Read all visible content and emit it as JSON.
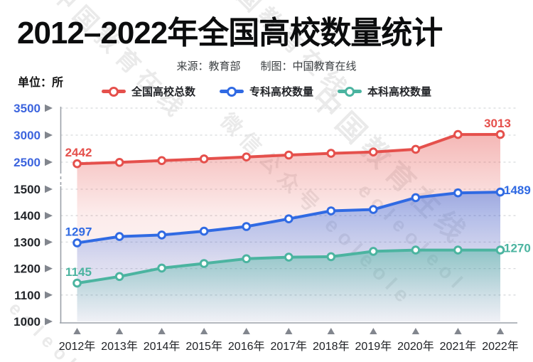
{
  "header": {
    "title": "2012–2022年全国高校数量统计",
    "source_label": "来源：教育部",
    "credit_label": "制图：中国教育在线",
    "unit_label": "单位：所"
  },
  "watermark": {
    "lines": [
      "中国教育在线",
      "中国教育在线",
      "中国教育在线",
      "微信公众号 eoleole",
      "eoleoleol",
      "eoleol"
    ]
  },
  "palette": {
    "total_red": "#e5504c",
    "zhuanke_blue": "#306ae3",
    "benke_teal": "#4bb4a0",
    "upper_tick_blue": "#3c64de",
    "lower_tick_dark": "#23262b",
    "axis_gray": "#9ba1a8",
    "grid_gray": "#d7d9dc",
    "triangle_gray": "#82868e"
  },
  "chart_data": {
    "type": "line",
    "title": "2012–2022年全国高校数量统计",
    "unit": "所",
    "source": "来源：教育部",
    "credit": "制图：中国教育在线",
    "legend_position": "top",
    "grid": true,
    "categories": [
      "2012年",
      "2013年",
      "2014年",
      "2015年",
      "2016年",
      "2017年",
      "2018年",
      "2019年",
      "2020年",
      "2021年",
      "2022年"
    ],
    "series": [
      {
        "name": "全国高校总数",
        "color": "#e5504c",
        "values": [
          2442,
          2491,
          2529,
          2560,
          2596,
          2631,
          2663,
          2688,
          2738,
          3012,
          3013
        ],
        "first_label": "2442",
        "last_label": "3013"
      },
      {
        "name": "专科高校数量",
        "color": "#306ae3",
        "values": [
          1297,
          1321,
          1327,
          1341,
          1359,
          1388,
          1418,
          1423,
          1468,
          1486,
          1489
        ],
        "first_label": "1297",
        "last_label": "1489"
      },
      {
        "name": "本科高校数量",
        "color": "#4bb4a0",
        "values": [
          1145,
          1170,
          1202,
          1219,
          1237,
          1243,
          1245,
          1265,
          1270,
          1270,
          1270
        ],
        "first_label": "1145",
        "last_label": "1270"
      }
    ],
    "y_axis": {
      "axis_break": true,
      "ticks": [
        {
          "label": "3500",
          "value": 3500,
          "group": "upper"
        },
        {
          "label": "3000",
          "value": 3000,
          "group": "upper"
        },
        {
          "label": "2500",
          "value": 2500,
          "group": "upper"
        },
        {
          "label": "1500",
          "value": 1500,
          "group": "lower"
        },
        {
          "label": "1400",
          "value": 1400,
          "group": "lower"
        },
        {
          "label": "1300",
          "value": 1300,
          "group": "lower"
        },
        {
          "label": "1200",
          "value": 1200,
          "group": "lower"
        },
        {
          "label": "1100",
          "value": 1100,
          "group": "lower"
        },
        {
          "label": "1000",
          "value": 1000,
          "group": "lower"
        }
      ]
    }
  }
}
